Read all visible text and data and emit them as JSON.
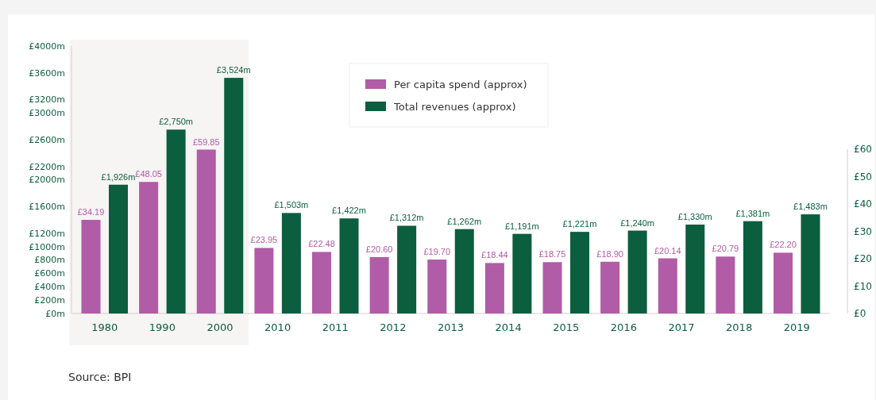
{
  "chart_data": {
    "type": "bar",
    "categories": [
      "1980",
      "1990",
      "2000",
      "2010",
      "2011",
      "2012",
      "2013",
      "2014",
      "2015",
      "2016",
      "2017",
      "2018",
      "2019"
    ],
    "series": [
      {
        "name": "Per capita spend (approx)",
        "color": "#b05ca6",
        "axis": "y2",
        "values": [
          34.19,
          48.05,
          59.85,
          23.95,
          22.48,
          20.6,
          19.7,
          18.44,
          18.75,
          18.9,
          20.14,
          20.79,
          22.2
        ],
        "value_labels": [
          "£34.19",
          "£48.05",
          "£59.85",
          "£23.95",
          "£22.48",
          "£20.60",
          "£19.70",
          "£18.44",
          "£18.75",
          "£18.90",
          "£20.14",
          "£20.79",
          "£22.20"
        ]
      },
      {
        "name": "Total revenues (approx)",
        "color": "#0b5e3e",
        "values": [
          1926,
          2750,
          3524,
          1503,
          1422,
          1312,
          1262,
          1191,
          1221,
          1240,
          1330,
          1381,
          1483
        ],
        "value_labels": [
          "£1,926m",
          "£2,750m",
          "£3,524m",
          "£1,503m",
          "£1,422m",
          "£1,312m",
          "£1,262m",
          "£1,191m",
          "£1,221m",
          "£1,240m",
          "£1,330m",
          "£1,381m",
          "£1,483m"
        ]
      }
    ],
    "ylim": [
      0,
      4000
    ],
    "yticks": [
      {
        "value": 0,
        "label": "£0m"
      },
      {
        "value": 200,
        "label": "£200m"
      },
      {
        "value": 400,
        "label": "£400m"
      },
      {
        "value": 600,
        "label": "£600m"
      },
      {
        "value": 800,
        "label": "£800m"
      },
      {
        "value": 1000,
        "label": "£1000m"
      },
      {
        "value": 1200,
        "label": "£1200m"
      },
      {
        "value": 1600,
        "label": "£1600m"
      },
      {
        "value": 2000,
        "label": "£2000m"
      },
      {
        "value": 2200,
        "label": "£2200m"
      },
      {
        "value": 2600,
        "label": "£2600m"
      },
      {
        "value": 3000,
        "label": "£3000m"
      },
      {
        "value": 3200,
        "label": "£3200m"
      },
      {
        "value": 3600,
        "label": "£3600m"
      },
      {
        "value": 4000,
        "label": "£4000m"
      }
    ],
    "y2lim": [
      0,
      60
    ],
    "y2ticks": [
      {
        "value": 0,
        "label": "£0"
      },
      {
        "value": 10,
        "label": "£10"
      },
      {
        "value": 20,
        "label": "£20"
      },
      {
        "value": 30,
        "label": "£30"
      },
      {
        "value": 40,
        "label": "£40"
      },
      {
        "value": 50,
        "label": "£50"
      },
      {
        "value": 60,
        "label": "£60"
      }
    ],
    "bands": [
      {
        "axis": "x",
        "from": "1980",
        "to": "2000",
        "color": "#f7f4f4"
      }
    ],
    "legend": "top",
    "annotations": [
      "Source: BPI"
    ]
  }
}
